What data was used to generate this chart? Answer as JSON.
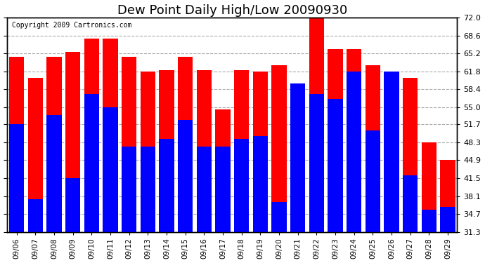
{
  "title": "Dew Point Daily High/Low 20090930",
  "copyright": "Copyright 2009 Cartronics.com",
  "dates": [
    "09/06",
    "09/07",
    "09/08",
    "09/09",
    "09/10",
    "09/11",
    "09/12",
    "09/13",
    "09/14",
    "09/15",
    "09/16",
    "09/17",
    "09/18",
    "09/19",
    "09/20",
    "09/21",
    "09/22",
    "09/23",
    "09/24",
    "09/25",
    "09/26",
    "09/27",
    "09/28",
    "09/29"
  ],
  "highs": [
    64.5,
    60.5,
    64.5,
    65.5,
    68.0,
    68.0,
    64.5,
    61.8,
    62.0,
    64.5,
    62.0,
    54.5,
    62.0,
    61.8,
    63.0,
    59.5,
    72.0,
    66.0,
    66.0,
    63.0,
    61.8,
    60.5,
    48.3,
    44.9
  ],
  "lows": [
    51.8,
    37.5,
    53.5,
    41.5,
    57.5,
    55.0,
    47.5,
    47.5,
    49.0,
    52.5,
    47.5,
    47.5,
    49.0,
    49.5,
    37.0,
    59.5,
    57.5,
    56.5,
    61.8,
    50.5,
    61.8,
    42.0,
    35.5,
    36.0
  ],
  "high_color": "#ff0000",
  "low_color": "#0000ff",
  "bg_color": "#ffffff",
  "plot_bg_color": "#ffffff",
  "grid_color": "#aaaaaa",
  "title_fontsize": 13,
  "ylabel_right": [
    "72.0",
    "68.6",
    "65.2",
    "61.8",
    "58.4",
    "55.0",
    "51.7",
    "48.3",
    "44.9",
    "41.5",
    "38.1",
    "34.7",
    "31.3"
  ],
  "ymin": 31.3,
  "ymax": 72.0,
  "yticks": [
    72.0,
    68.6,
    65.2,
    61.8,
    58.4,
    55.0,
    51.7,
    48.3,
    44.9,
    41.5,
    38.1,
    34.7,
    31.3
  ]
}
